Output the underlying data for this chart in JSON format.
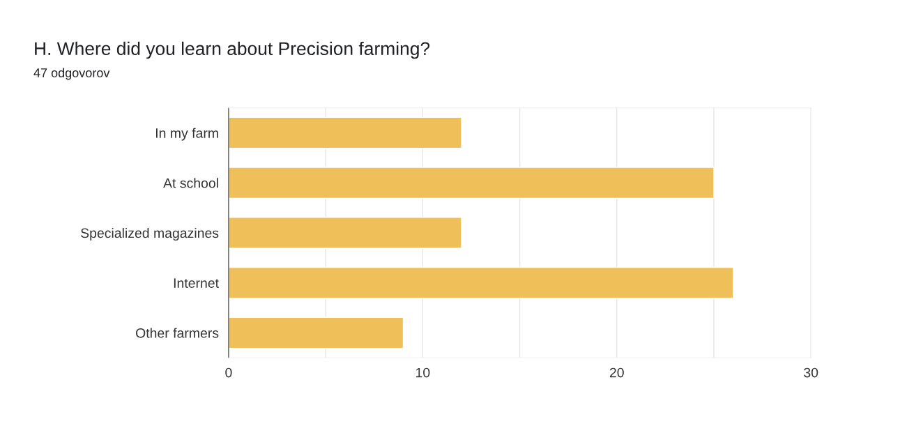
{
  "chart_data": {
    "type": "bar",
    "orientation": "horizontal",
    "title": "H. Where did you learn about Precision farming?",
    "subtitle": "47 odgovorov",
    "categories": [
      "In my farm",
      "At school",
      "Specialized magazines",
      "Internet",
      "Other farmers"
    ],
    "values": [
      12,
      25,
      12,
      26,
      9
    ],
    "color": "#efc05a",
    "xlim": [
      0,
      30
    ],
    "xticks": [
      0,
      {
        "value": 5,
        "label": null
      },
      10,
      {
        "value": 15,
        "label": null
      },
      20,
      {
        "value": 25,
        "label": null
      },
      30
    ],
    "grid": "x"
  }
}
